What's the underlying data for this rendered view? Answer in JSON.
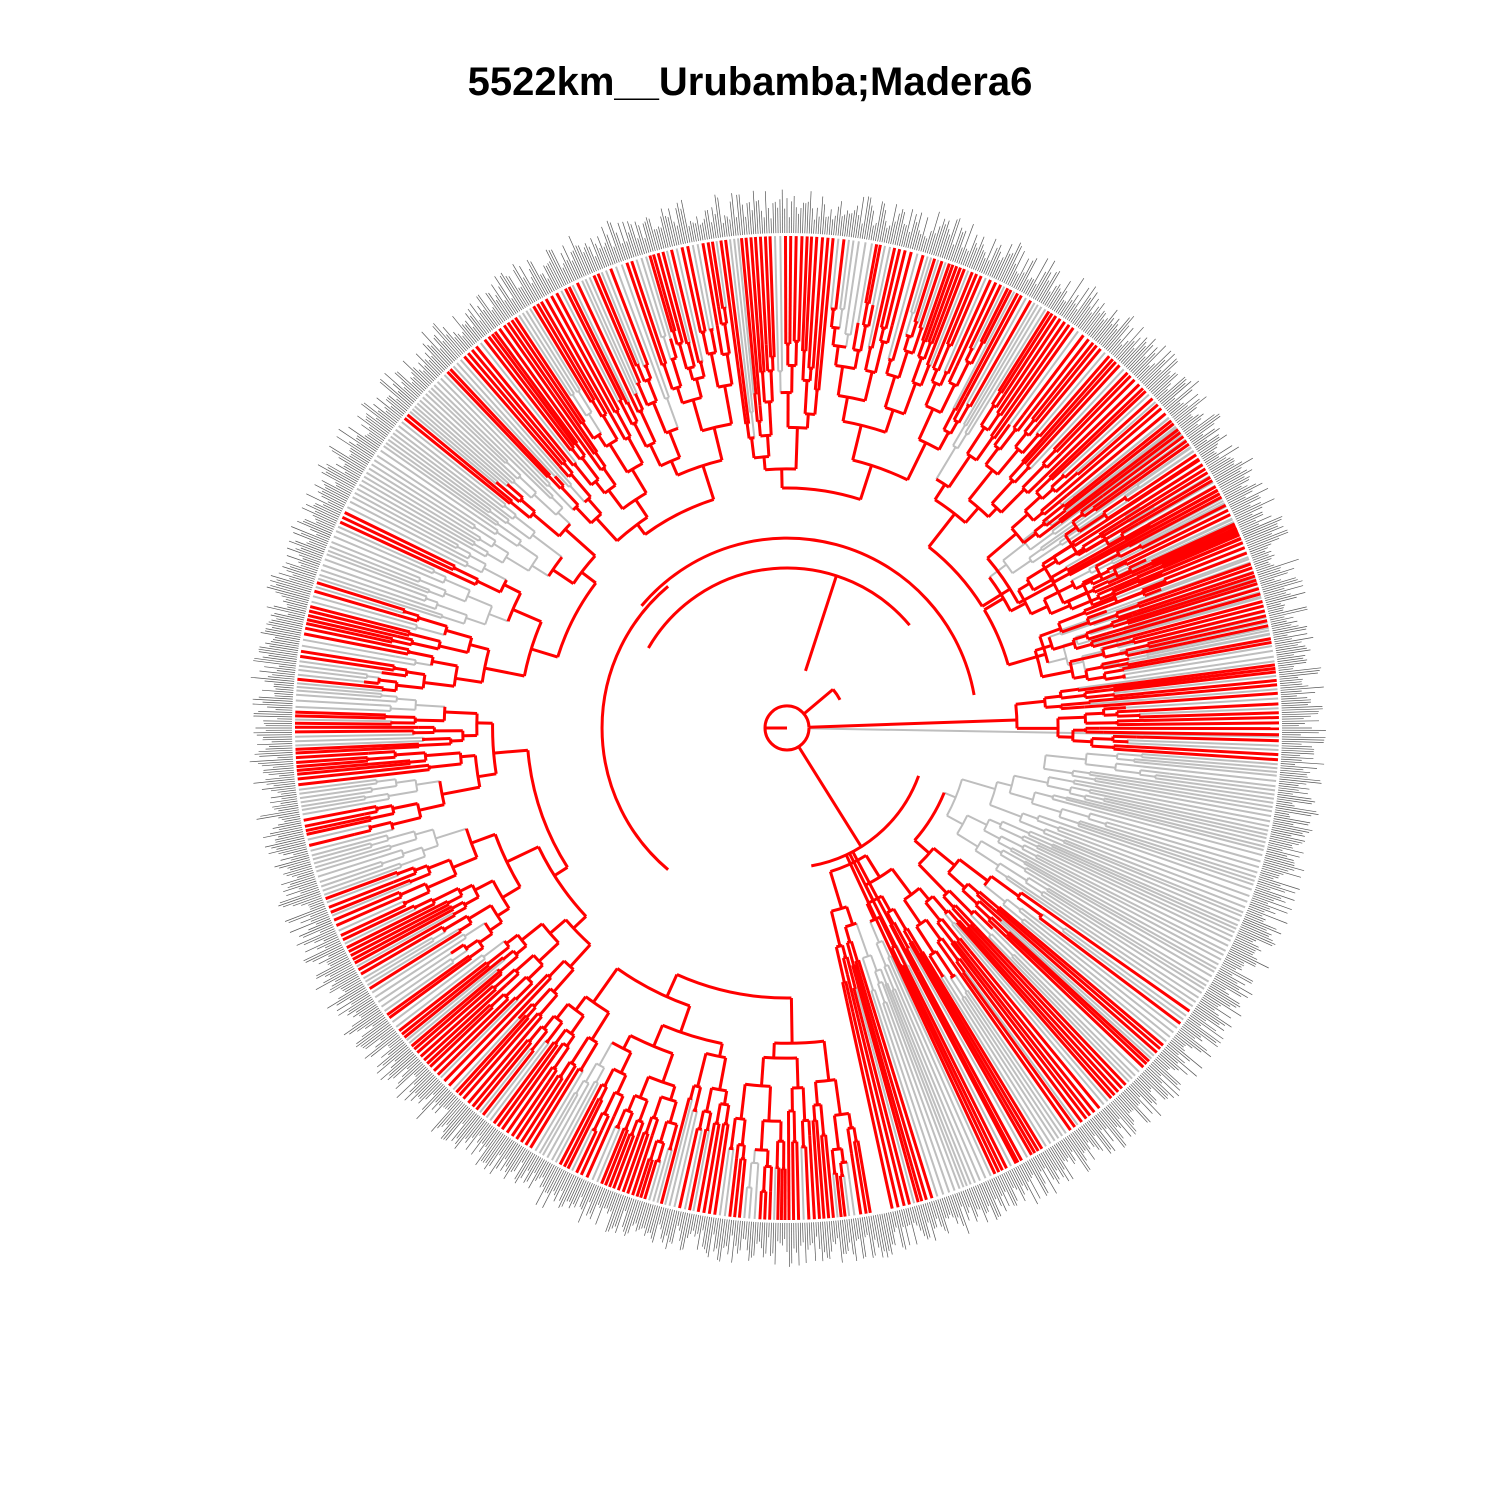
{
  "title": "5522km__Urubamba;Madera6",
  "tree": {
    "layout": "circular",
    "highlighted_color": "#ff0000",
    "background_branch_color": "#bebebe",
    "tip_label_color": "#555555"
  }
}
